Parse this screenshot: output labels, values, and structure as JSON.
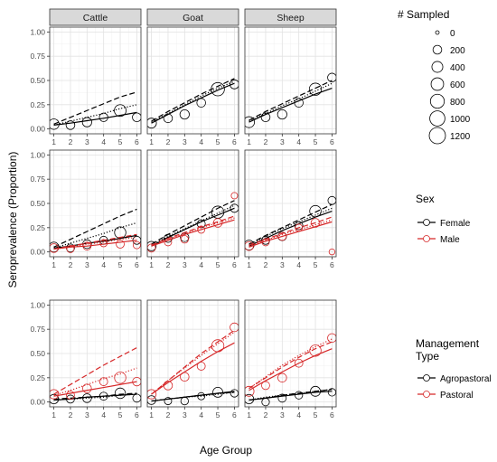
{
  "figure": {
    "ylabel": "Seroprevalence (Proportion)",
    "xlabel": "Age Group",
    "facet_columns": [
      "Cattle",
      "Goat",
      "Sheep"
    ],
    "x_ticks": [
      "1",
      "2",
      "3",
      "4",
      "5",
      "6"
    ],
    "y_ticks": [
      "0.00",
      "0.25",
      "0.50",
      "0.75",
      "1.00"
    ]
  },
  "legends": {
    "size": {
      "title": "# Sampled",
      "labels": [
        "0",
        "200",
        "400",
        "600",
        "800",
        "1000",
        "1200"
      ]
    },
    "sex": {
      "title": "Sex",
      "entries": [
        {
          "label": "Female",
          "color": "#000000"
        },
        {
          "label": "Male",
          "color": "#d62728"
        }
      ]
    },
    "management": {
      "title_line1": "Management",
      "title_line2": "Type",
      "entries": [
        {
          "label": "Agropastoral",
          "color": "#000000"
        },
        {
          "label": "Pastoral",
          "color": "#d62728"
        }
      ]
    }
  },
  "chart_data": {
    "type": "scatter",
    "xlabel": "Age Group",
    "ylabel": "Seroprevalence (Proportion)",
    "xlim": [
      0.75,
      6.25
    ],
    "ylim": [
      -0.05,
      1.05
    ],
    "facets_columns": [
      "Cattle",
      "Goat",
      "Sheep"
    ],
    "panels": [
      {
        "row": 0,
        "col": 0,
        "groups": [
          {
            "color": "#000000",
            "points": [
              [
                1,
                0.05,
                350
              ],
              [
                2,
                0.04,
                200
              ],
              [
                3,
                0.07,
                250
              ],
              [
                4,
                0.12,
                180
              ],
              [
                5,
                0.19,
                500
              ],
              [
                6,
                0.12,
                200
              ]
            ],
            "solid": [
              0.04,
              0.06,
              0.085,
              0.11,
              0.14,
              0.17
            ],
            "dashed": [
              0.05,
              0.12,
              0.19,
              0.26,
              0.33,
              0.38
            ],
            "dotted": [
              0.04,
              0.08,
              0.12,
              0.16,
              0.21,
              0.25
            ]
          }
        ]
      },
      {
        "row": 0,
        "col": 1,
        "groups": [
          {
            "color": "#000000",
            "points": [
              [
                1,
                0.06,
                300
              ],
              [
                2,
                0.11,
                200
              ],
              [
                3,
                0.15,
                250
              ],
              [
                4,
                0.27,
                200
              ],
              [
                5,
                0.41,
                700
              ],
              [
                6,
                0.46,
                220
              ]
            ],
            "solid": [
              0.06,
              0.15,
              0.24,
              0.32,
              0.4,
              0.47
            ],
            "dashed": [
              0.08,
              0.18,
              0.27,
              0.36,
              0.44,
              0.52
            ],
            "dotted": [
              0.07,
              0.16,
              0.25,
              0.34,
              0.42,
              0.49
            ]
          }
        ]
      },
      {
        "row": 0,
        "col": 2,
        "groups": [
          {
            "color": "#000000",
            "points": [
              [
                1,
                0.07,
                400
              ],
              [
                2,
                0.12,
                200
              ],
              [
                3,
                0.15,
                250
              ],
              [
                4,
                0.27,
                200
              ],
              [
                5,
                0.41,
                550
              ],
              [
                6,
                0.53,
                200
              ]
            ],
            "solid": [
              0.07,
              0.15,
              0.22,
              0.29,
              0.36,
              0.42
            ],
            "dashed": [
              0.09,
              0.18,
              0.26,
              0.34,
              0.42,
              0.5
            ],
            "dotted": [
              0.08,
              0.16,
              0.24,
              0.31,
              0.39,
              0.47
            ]
          }
        ]
      },
      {
        "row": 1,
        "col": 0,
        "groups": [
          {
            "color": "#000000",
            "points": [
              [
                1,
                0.05,
                300
              ],
              [
                2,
                0.04,
                150
              ],
              [
                3,
                0.08,
                200
              ],
              [
                4,
                0.12,
                150
              ],
              [
                5,
                0.2,
                450
              ],
              [
                6,
                0.12,
                150
              ]
            ],
            "solid": [
              0.04,
              0.06,
              0.09,
              0.11,
              0.14,
              0.17
            ],
            "dashed": [
              0.05,
              0.13,
              0.21,
              0.29,
              0.37,
              0.44
            ],
            "dotted": [
              0.04,
              0.09,
              0.14,
              0.19,
              0.25,
              0.3
            ]
          },
          {
            "color": "#d62728",
            "points": [
              [
                1,
                0.04,
                200
              ],
              [
                2,
                0.03,
                100
              ],
              [
                3,
                0.06,
                150
              ],
              [
                4,
                0.09,
                100
              ],
              [
                5,
                0.08,
                150
              ],
              [
                6,
                0.07,
                100
              ]
            ],
            "solid": [
              0.03,
              0.05,
              0.06,
              0.08,
              0.1,
              0.12
            ],
            "dashed": [
              0.03,
              0.06,
              0.09,
              0.12,
              0.15,
              0.18
            ],
            "dotted": [
              0.03,
              0.05,
              0.08,
              0.1,
              0.13,
              0.15
            ]
          }
        ]
      },
      {
        "row": 1,
        "col": 1,
        "groups": [
          {
            "color": "#000000",
            "points": [
              [
                1,
                0.06,
                250
              ],
              [
                2,
                0.14,
                150
              ],
              [
                3,
                0.15,
                180
              ],
              [
                4,
                0.29,
                150
              ],
              [
                5,
                0.41,
                550
              ],
              [
                6,
                0.45,
                160
              ]
            ],
            "solid": [
              0.06,
              0.15,
              0.23,
              0.31,
              0.38,
              0.45
            ],
            "dashed": [
              0.08,
              0.18,
              0.27,
              0.36,
              0.45,
              0.53
            ],
            "dotted": [
              0.07,
              0.16,
              0.24,
              0.32,
              0.4,
              0.48
            ]
          },
          {
            "color": "#d62728",
            "points": [
              [
                1,
                0.04,
                150
              ],
              [
                2,
                0.1,
                100
              ],
              [
                3,
                0.13,
                120
              ],
              [
                4,
                0.23,
                100
              ],
              [
                5,
                0.3,
                200
              ],
              [
                6,
                0.58,
                60
              ]
            ],
            "solid": [
              0.06,
              0.12,
              0.18,
              0.23,
              0.28,
              0.33
            ],
            "dashed": [
              0.07,
              0.14,
              0.2,
              0.26,
              0.31,
              0.37
            ],
            "dotted": [
              0.06,
              0.13,
              0.19,
              0.25,
              0.3,
              0.35
            ]
          }
        ]
      },
      {
        "row": 1,
        "col": 2,
        "groups": [
          {
            "color": "#000000",
            "points": [
              [
                1,
                0.07,
                300
              ],
              [
                2,
                0.12,
                150
              ],
              [
                3,
                0.16,
                180
              ],
              [
                4,
                0.27,
                150
              ],
              [
                5,
                0.42,
                450
              ],
              [
                6,
                0.53,
                150
              ]
            ],
            "solid": [
              0.06,
              0.14,
              0.22,
              0.29,
              0.36,
              0.42
            ],
            "dashed": [
              0.08,
              0.17,
              0.25,
              0.33,
              0.41,
              0.49
            ],
            "dotted": [
              0.07,
              0.16,
              0.24,
              0.31,
              0.38,
              0.45
            ]
          },
          {
            "color": "#d62728",
            "points": [
              [
                1,
                0.06,
                200
              ],
              [
                2,
                0.1,
                100
              ],
              [
                3,
                0.16,
                150
              ],
              [
                4,
                0.25,
                100
              ],
              [
                5,
                0.3,
                200
              ],
              [
                6,
                0.0,
                40
              ]
            ],
            "solid": [
              0.05,
              0.11,
              0.16,
              0.21,
              0.26,
              0.31
            ],
            "dashed": [
              0.07,
              0.13,
              0.19,
              0.25,
              0.3,
              0.36
            ],
            "dotted": [
              0.06,
              0.12,
              0.18,
              0.23,
              0.28,
              0.33
            ]
          }
        ]
      },
      {
        "row": 2,
        "col": 0,
        "groups": [
          {
            "color": "#000000",
            "points": [
              [
                1,
                0.03,
                250
              ],
              [
                2,
                0.03,
                150
              ],
              [
                3,
                0.04,
                200
              ],
              [
                4,
                0.06,
                150
              ],
              [
                5,
                0.09,
                350
              ],
              [
                6,
                0.04,
                150
              ]
            ],
            "solid": [
              0.02,
              0.03,
              0.05,
              0.06,
              0.07,
              0.08
            ],
            "dashed": [
              0.03,
              0.04,
              0.05,
              0.06,
              0.08,
              0.09
            ],
            "dotted": [
              0.02,
              0.03,
              0.04,
              0.05,
              0.07,
              0.08
            ]
          },
          {
            "color": "#d62728",
            "points": [
              [
                1,
                0.08,
                250
              ],
              [
                2,
                0.07,
                150
              ],
              [
                3,
                0.14,
                200
              ],
              [
                4,
                0.21,
                150
              ],
              [
                5,
                0.25,
                450
              ],
              [
                6,
                0.21,
                180
              ]
            ],
            "solid": [
              0.06,
              0.09,
              0.12,
              0.15,
              0.18,
              0.21
            ],
            "dashed": [
              0.08,
              0.18,
              0.28,
              0.38,
              0.47,
              0.56
            ],
            "dotted": [
              0.07,
              0.12,
              0.18,
              0.24,
              0.29,
              0.35
            ]
          }
        ]
      },
      {
        "row": 2,
        "col": 1,
        "groups": [
          {
            "color": "#000000",
            "points": [
              [
                1,
                0.02,
                200
              ],
              [
                2,
                0.01,
                100
              ],
              [
                3,
                0.01,
                120
              ],
              [
                4,
                0.06,
                100
              ],
              [
                5,
                0.1,
                300
              ],
              [
                6,
                0.09,
                120
              ]
            ],
            "solid": [
              0.01,
              0.03,
              0.05,
              0.07,
              0.09,
              0.11
            ],
            "dashed": [
              0.01,
              0.03,
              0.05,
              0.07,
              0.09,
              0.1
            ],
            "dotted": [
              0.01,
              0.03,
              0.05,
              0.06,
              0.08,
              0.1
            ]
          },
          {
            "color": "#d62728",
            "points": [
              [
                1,
                0.08,
                250
              ],
              [
                2,
                0.17,
                200
              ],
              [
                3,
                0.26,
                200
              ],
              [
                4,
                0.37,
                150
              ],
              [
                5,
                0.58,
                550
              ],
              [
                6,
                0.77,
                200
              ]
            ],
            "solid": [
              0.08,
              0.2,
              0.31,
              0.42,
              0.52,
              0.61
            ],
            "dashed": [
              0.08,
              0.22,
              0.36,
              0.5,
              0.62,
              0.74
            ],
            "dotted": [
              0.08,
              0.22,
              0.35,
              0.48,
              0.6,
              0.72
            ]
          }
        ]
      },
      {
        "row": 2,
        "col": 2,
        "groups": [
          {
            "color": "#000000",
            "points": [
              [
                1,
                0.03,
                250
              ],
              [
                2,
                0.0,
                120
              ],
              [
                3,
                0.04,
                150
              ],
              [
                4,
                0.07,
                120
              ],
              [
                5,
                0.11,
                300
              ],
              [
                6,
                0.1,
                120
              ]
            ],
            "solid": [
              0.02,
              0.04,
              0.06,
              0.08,
              0.1,
              0.11
            ],
            "dashed": [
              0.02,
              0.04,
              0.07,
              0.09,
              0.11,
              0.13
            ],
            "dotted": [
              0.02,
              0.05,
              0.07,
              0.09,
              0.11,
              0.13
            ]
          },
          {
            "color": "#d62728",
            "points": [
              [
                1,
                0.11,
                300
              ],
              [
                2,
                0.17,
                150
              ],
              [
                3,
                0.25,
                200
              ],
              [
                4,
                0.4,
                150
              ],
              [
                5,
                0.53,
                450
              ],
              [
                6,
                0.66,
                200
              ]
            ],
            "solid": [
              0.12,
              0.22,
              0.31,
              0.4,
              0.48,
              0.55
            ],
            "dashed": [
              0.14,
              0.25,
              0.36,
              0.46,
              0.55,
              0.62
            ],
            "dotted": [
              0.14,
              0.26,
              0.38,
              0.48,
              0.57,
              0.65
            ]
          }
        ]
      }
    ]
  }
}
